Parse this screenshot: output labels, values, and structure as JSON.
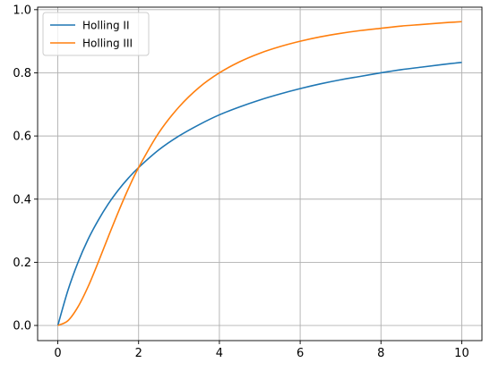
{
  "chart_data": {
    "type": "line",
    "title": "",
    "xlabel": "",
    "ylabel": "",
    "xlim": [
      -0.5,
      10.5
    ],
    "ylim": [
      -0.048,
      1.008
    ],
    "xticks": [
      0,
      2,
      4,
      6,
      8,
      10
    ],
    "yticks": [
      0.0,
      0.2,
      0.4,
      0.6,
      0.8,
      1.0
    ],
    "xtick_labels": [
      "0",
      "2",
      "4",
      "6",
      "8",
      "10"
    ],
    "ytick_labels": [
      "0.0",
      "0.2",
      "0.4",
      "0.6",
      "0.8",
      "1.0"
    ],
    "grid": true,
    "legend_position": "upper-left",
    "x": [
      0,
      0.25,
      0.5,
      0.75,
      1,
      1.25,
      1.5,
      1.75,
      2,
      2.5,
      3,
      3.5,
      4,
      4.5,
      5,
      5.5,
      6,
      6.5,
      7,
      7.5,
      8,
      8.5,
      9,
      9.5,
      10
    ],
    "series": [
      {
        "name": "Holling II",
        "color": "#1f77b4",
        "values": [
          0.0,
          0.111,
          0.2,
          0.273,
          0.333,
          0.385,
          0.429,
          0.467,
          0.5,
          0.556,
          0.6,
          0.636,
          0.667,
          0.692,
          0.714,
          0.733,
          0.75,
          0.765,
          0.778,
          0.789,
          0.8,
          0.81,
          0.818,
          0.826,
          0.833
        ]
      },
      {
        "name": "Holling III",
        "color": "#ff7f0e",
        "values": [
          0.0,
          0.015,
          0.059,
          0.123,
          0.2,
          0.281,
          0.36,
          0.434,
          0.5,
          0.61,
          0.692,
          0.754,
          0.8,
          0.835,
          0.862,
          0.883,
          0.9,
          0.914,
          0.925,
          0.934,
          0.941,
          0.948,
          0.953,
          0.958,
          0.962
        ]
      }
    ]
  }
}
